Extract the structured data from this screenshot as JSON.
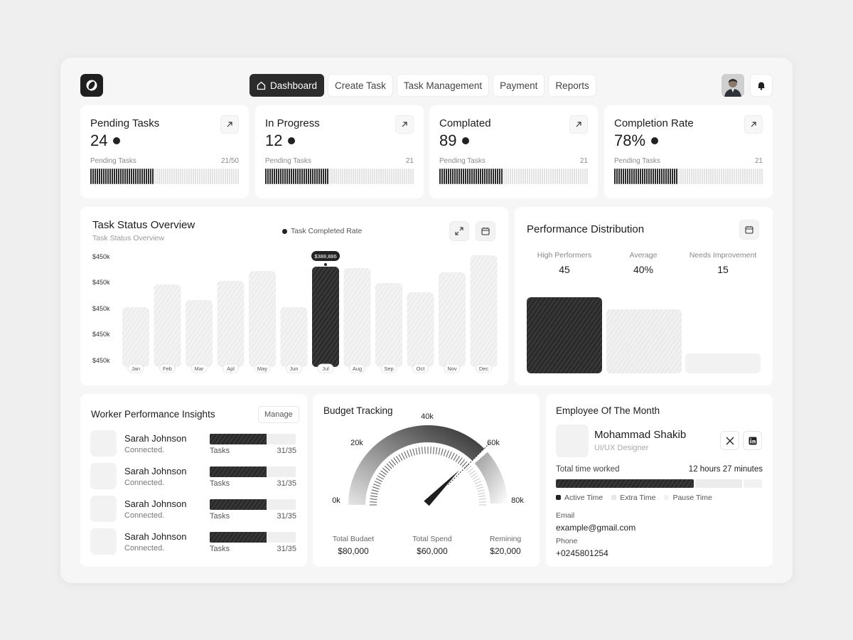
{
  "nav": {
    "items": [
      {
        "label": "Dashboard",
        "active": true,
        "icon": "home-icon"
      },
      {
        "label": "Create Task",
        "active": false
      },
      {
        "label": "Task Management",
        "active": false
      },
      {
        "label": "Payment",
        "active": false
      },
      {
        "label": "Reports",
        "active": false
      }
    ]
  },
  "stats": [
    {
      "title": "Pending Tasks",
      "value": "24",
      "sub_label": "Pending Tasks",
      "sub_value": "21/50",
      "progress": 0.42
    },
    {
      "title": "In Progress",
      "value": "12",
      "sub_label": "Pending Tasks",
      "sub_value": "21",
      "progress": 0.42
    },
    {
      "title": "Complated",
      "value": "89",
      "sub_label": "Pending Tasks",
      "sub_value": "21",
      "progress": 0.42
    },
    {
      "title": "Completion Rate",
      "value": "78%",
      "sub_label": "Pending Tasks",
      "sub_value": "21",
      "progress": 0.42
    }
  ],
  "task_status": {
    "title": "Task Status Overview",
    "subtitle": "Task Status Overview",
    "legend": "Task Completed Rate",
    "tooltip": "$388,886"
  },
  "chart_data": {
    "type": "bar",
    "categories": [
      "Jan",
      "Feb",
      "Mar",
      "Apl",
      "May",
      "Jun",
      "Jul",
      "Aug",
      "Sep",
      "Oct",
      "Nov",
      "Dec"
    ],
    "values": [
      84,
      116,
      94,
      121,
      135,
      84,
      141,
      139,
      118,
      105,
      133,
      157
    ],
    "highlight_index": 6,
    "y_tick_labels": [
      "$450k",
      "$450k",
      "$450k",
      "$450k",
      "$450k"
    ],
    "ylim": [
      0,
      157
    ],
    "grid": false
  },
  "performance": {
    "title": "Performance Distribution",
    "stats": [
      {
        "label": "High Performers",
        "value": "45"
      },
      {
        "label": "Average",
        "value": "40%"
      },
      {
        "label": "Needs Improvement",
        "value": "15"
      }
    ],
    "levels": [
      1.0,
      0.84,
      0.26
    ]
  },
  "workers": {
    "title": "Worker Performance Insights",
    "manage_label": "Manage",
    "rows": [
      {
        "name": "Sarah Johnson",
        "status": "Connected.",
        "tasks_label": "Tasks",
        "count": "31/35",
        "progress": 0.66
      },
      {
        "name": "Sarah Johnson",
        "status": "Connected.",
        "tasks_label": "Tasks",
        "count": "31/35",
        "progress": 0.66
      },
      {
        "name": "Sarah Johnson",
        "status": "Connected.",
        "tasks_label": "Tasks",
        "count": "31/35",
        "progress": 0.66
      },
      {
        "name": "Sarah Johnson",
        "status": "Connected.",
        "tasks_label": "Tasks",
        "count": "31/35",
        "progress": 0.66
      }
    ]
  },
  "budget": {
    "title": "Budget Tracking",
    "ticks": [
      "0k",
      "20k",
      "40k",
      "60k",
      "80k"
    ],
    "gauge_max": 80,
    "needle_value": 60,
    "total_budget_label": "Total Budaet",
    "total_budget": "$80,000",
    "total_spend_label": "Total Spend",
    "total_spend": "$60,000",
    "remaining_label": "Remining",
    "remaining": "$20,000"
  },
  "employee": {
    "title": "Employee Of The Month",
    "name": "Mohammad Shakib",
    "role": "UI/UX Designer",
    "time_label": "Total time worked",
    "time_value": "12 hours 27 minutes",
    "segments": [
      0.68,
      0.23,
      0.09
    ],
    "legend": [
      "Active Time",
      "Extra Time",
      "Pause Time"
    ],
    "email_label": "Email",
    "email": "example@gmail.com",
    "phone_label": "Phone",
    "phone": "+0245801254"
  },
  "colors": {
    "dark": "#2b2b2b",
    "light": "#efefef",
    "card": "#ffffff",
    "background": "#efefef"
  }
}
